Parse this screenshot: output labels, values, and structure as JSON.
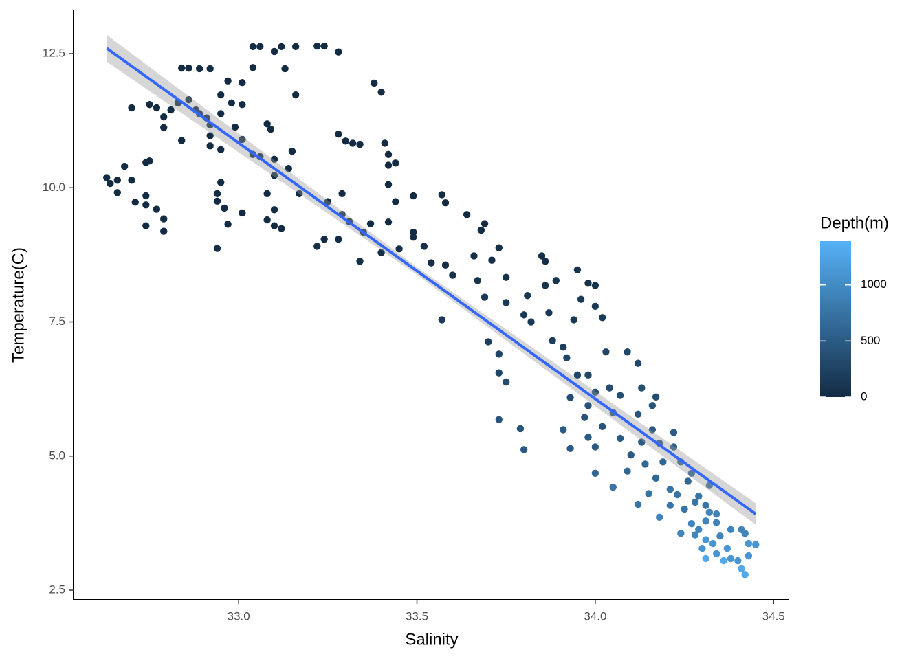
{
  "chart_data": {
    "type": "scatter",
    "x_label": "Salinity",
    "y_label": "Temperature(C)",
    "color_label": "Depth(m)",
    "xlim": [
      32.537,
      34.542
    ],
    "ylim": [
      2.321,
      13.307
    ],
    "xticks": [
      {
        "value": 33,
        "label": "33.0"
      },
      33.5,
      {
        "value": 34,
        "label": "34.0"
      },
      34.5
    ],
    "yticks": [
      2.5,
      {
        "value": 5,
        "label": "5.0"
      },
      7.5,
      {
        "value": 10,
        "label": "10.0"
      },
      12.5
    ],
    "colorlim": [
      0,
      1390
    ],
    "colorticks": [
      0,
      500,
      1000
    ],
    "color_low": "#132B43",
    "color_high": "#56B1F7",
    "x": [
      32.63,
      32.64,
      32.66,
      32.66,
      32.68,
      32.7,
      32.71,
      32.74,
      32.74,
      32.75,
      32.74,
      32.77,
      32.74,
      32.79,
      32.79,
      32.7,
      32.75,
      32.77,
      32.79,
      32.79,
      32.81,
      32.83,
      32.84,
      32.84,
      32.86,
      32.89,
      32.92,
      32.86,
      32.88,
      32.89,
      32.91,
      32.92,
      32.92,
      32.92,
      32.95,
      32.95,
      32.95,
      32.95,
      32.94,
      32.94,
      32.96,
      32.97,
      32.94,
      32.97,
      32.98,
      32.99,
      33.01,
      33.01,
      33.01,
      33.01,
      33.04,
      33.04,
      33.06,
      33.06,
      33.04,
      33.08,
      33.09,
      33.08,
      33.08,
      33.1,
      33.12,
      33.13,
      33.1,
      33.1,
      33.1,
      33.1,
      33.12,
      33.14,
      33.15,
      33.16,
      33.16,
      33.17,
      33.22,
      33.24,
      33.22,
      33.24,
      33.25,
      33.28,
      33.28,
      33.28,
      33.29,
      33.29,
      33.3,
      33.31,
      33.32,
      33.34,
      33.34,
      33.35,
      33.37,
      33.38,
      33.4,
      33.4,
      33.41,
      33.42,
      33.42,
      33.42,
      33.42,
      33.44,
      33.44,
      33.45,
      33.49,
      33.49,
      33.49,
      33.52,
      33.54,
      33.57,
      33.57,
      33.58,
      33.58,
      33.6,
      33.64,
      33.66,
      33.67,
      33.68,
      33.69,
      33.69,
      33.7,
      33.71,
      33.73,
      33.73,
      33.73,
      33.75,
      33.75,
      33.73,
      33.75,
      33.79,
      33.8,
      33.8,
      33.81,
      33.82,
      33.85,
      33.86,
      33.86,
      33.87,
      33.88,
      33.89,
      33.91,
      33.91,
      33.92,
      33.93,
      33.93,
      33.94,
      33.95,
      33.95,
      33.96,
      33.97,
      33.98,
      33.98,
      33.98,
      33.98,
      34.0,
      34.0,
      34.0,
      34.0,
      34.0,
      34.02,
      34.02,
      34.03,
      34.04,
      34.05,
      34.05,
      34.07,
      34.07,
      34.09,
      34.09,
      34.1,
      34.12,
      34.12,
      34.12,
      34.13,
      34.13,
      34.14,
      34.15,
      34.16,
      34.16,
      34.17,
      34.17,
      34.18,
      34.18,
      34.19,
      34.21,
      34.21,
      34.22,
      34.22,
      34.23,
      34.24,
      34.24,
      34.25,
      34.26,
      34.27,
      34.27,
      34.28,
      34.28,
      34.29,
      34.29,
      34.3,
      34.31,
      34.31,
      34.31,
      34.32,
      34.32,
      34.33,
      34.34,
      34.34,
      34.34,
      34.35,
      34.36,
      34.37,
      34.38,
      34.38,
      34.4,
      34.41,
      34.41,
      34.42,
      34.42,
      34.43,
      34.43,
      34.45,
      34.31
    ],
    "y": [
      10.19,
      10.08,
      10.14,
      9.91,
      10.4,
      10.14,
      9.73,
      9.68,
      10.47,
      10.5,
      9.85,
      9.6,
      9.29,
      9.42,
      9.19,
      11.49,
      11.55,
      11.49,
      11.32,
      11.12,
      11.45,
      11.58,
      10.88,
      12.23,
      12.23,
      12.22,
      12.22,
      11.64,
      11.45,
      11.38,
      11.3,
      11.17,
      10.97,
      10.78,
      11.73,
      11.38,
      10.71,
      10.1,
      9.89,
      9.75,
      9.62,
      9.32,
      8.87,
      11.99,
      11.58,
      11.13,
      11.55,
      11.96,
      10.9,
      9.53,
      12.24,
      12.63,
      12.63,
      10.58,
      10.62,
      11.19,
      11.09,
      9.89,
      9.4,
      12.54,
      12.63,
      12.22,
      10.53,
      10.23,
      9.59,
      9.29,
      9.24,
      10.36,
      10.68,
      11.73,
      12.63,
      9.89,
      12.64,
      12.64,
      8.91,
      9.04,
      9.74,
      9.04,
      11.0,
      12.53,
      9.5,
      9.89,
      10.87,
      9.37,
      10.83,
      10.81,
      8.63,
      9.17,
      9.33,
      11.95,
      11.78,
      8.79,
      10.83,
      10.62,
      10.42,
      10.06,
      9.36,
      10.46,
      9.74,
      8.86,
      9.08,
      9.17,
      9.85,
      8.91,
      8.6,
      9.87,
      7.54,
      9.72,
      8.56,
      8.37,
      9.5,
      8.73,
      8.27,
      9.21,
      9.33,
      7.96,
      7.13,
      8.65,
      6.9,
      8.88,
      6.55,
      8.33,
      6.38,
      5.68,
      7.86,
      5.51,
      5.12,
      7.63,
      7.99,
      7.5,
      8.73,
      8.63,
      8.18,
      7.67,
      7.15,
      8.27,
      5.49,
      7.03,
      6.83,
      6.09,
      5.14,
      7.54,
      8.47,
      6.51,
      7.92,
      5.72,
      8.22,
      5.35,
      5.94,
      6.51,
      4.68,
      5.17,
      8.18,
      7.79,
      6.19,
      5.55,
      7.58,
      6.94,
      6.27,
      5.81,
      4.42,
      6.13,
      5.33,
      4.72,
      6.94,
      5.02,
      6.73,
      5.78,
      4.1,
      6.27,
      5.26,
      4.85,
      4.3,
      5.94,
      5.49,
      6.1,
      4.59,
      3.86,
      5.24,
      4.89,
      4.38,
      4.08,
      5.44,
      5.17,
      4.28,
      4.89,
      3.56,
      4.01,
      4.53,
      4.68,
      3.74,
      4.14,
      3.53,
      3.63,
      4.25,
      3.28,
      3.79,
      4.08,
      3.44,
      4.45,
      3.95,
      3.37,
      3.76,
      3.18,
      3.92,
      3.51,
      3.05,
      3.28,
      3.63,
      3.09,
      3.05,
      3.63,
      2.9,
      2.79,
      3.56,
      3.37,
      3.14,
      3.35,
      3.09
    ],
    "depth": [
      10,
      10,
      10,
      10,
      10,
      10,
      10,
      10,
      10,
      10,
      10,
      10,
      10,
      10,
      10,
      10,
      10,
      10,
      10,
      10,
      10,
      10,
      10,
      10,
      10,
      10,
      10,
      10,
      10,
      10,
      10,
      10,
      10,
      10,
      10,
      10,
      10,
      10,
      10,
      10,
      10,
      10,
      40,
      10,
      10,
      10,
      10,
      10,
      10,
      10,
      10,
      10,
      10,
      10,
      10,
      10,
      10,
      10,
      10,
      10,
      10,
      10,
      10,
      10,
      10,
      10,
      10,
      10,
      10,
      10,
      10,
      10,
      10,
      10,
      40,
      10,
      10,
      10,
      10,
      10,
      10,
      10,
      10,
      10,
      10,
      10,
      40,
      10,
      10,
      10,
      10,
      40,
      10,
      10,
      10,
      10,
      10,
      10,
      10,
      40,
      10,
      10,
      10,
      40,
      40,
      10,
      150,
      10,
      40,
      80,
      10,
      40,
      80,
      10,
      10,
      150,
      200,
      40,
      280,
      40,
      280,
      80,
      350,
      430,
      150,
      430,
      500,
      150,
      150,
      150,
      40,
      40,
      80,
      150,
      200,
      80,
      500,
      200,
      280,
      350,
      500,
      150,
      80,
      280,
      150,
      430,
      80,
      500,
      430,
      280,
      620,
      500,
      80,
      150,
      350,
      430,
      150,
      280,
      350,
      430,
      760,
      350,
      500,
      620,
      280,
      500,
      280,
      430,
      760,
      350,
      500,
      620,
      760,
      430,
      500,
      350,
      620,
      920,
      500,
      620,
      760,
      760,
      500,
      500,
      760,
      620,
      920,
      760,
      620,
      620,
      920,
      760,
      920,
      920,
      760,
      1100,
      920,
      760,
      1100,
      760,
      920,
      1100,
      920,
      1100,
      920,
      920,
      1300,
      1100,
      920,
      1100,
      1100,
      920,
      1300,
      1300,
      920,
      1100,
      1100,
      1100,
      1300
    ],
    "fit": {
      "color": "#3366FF",
      "band_color": "#999999",
      "x": [
        32.63,
        33.5,
        34.45
      ],
      "y": [
        12.6,
        8.45,
        3.92
      ],
      "ymin": [
        12.35,
        8.38,
        3.72
      ],
      "ymax": [
        12.85,
        8.52,
        4.12
      ]
    }
  }
}
